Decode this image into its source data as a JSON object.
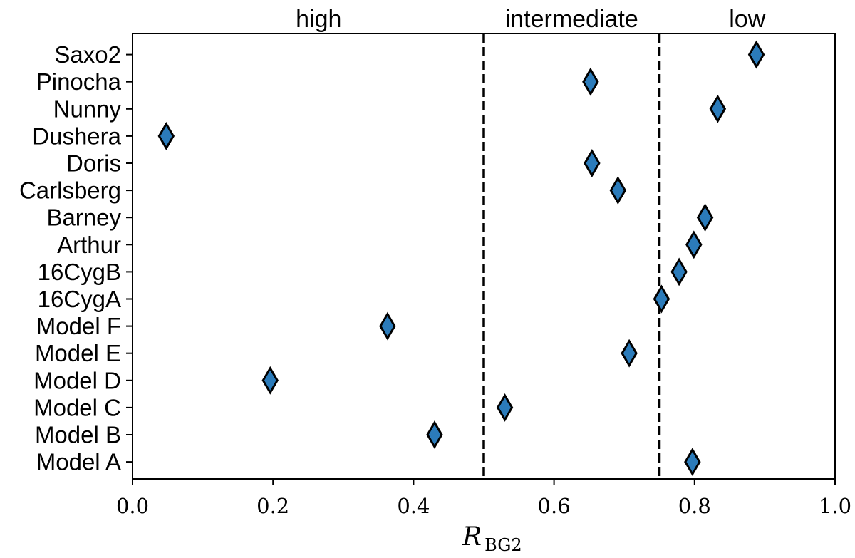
{
  "chart_data": {
    "type": "scatter",
    "marker": "diamond",
    "marker_color": "#2b7bba",
    "marker_edge_color": "#000000",
    "categories": [
      "Saxo2",
      "Pinocha",
      "Nunny",
      "Dushera",
      "Doris",
      "Carlsberg",
      "Barney",
      "Arthur",
      "16CygB",
      "16CygA",
      "Model F",
      "Model E",
      "Model D",
      "Model C",
      "Model B",
      "Model A"
    ],
    "values": [
      0.888,
      0.652,
      0.833,
      0.048,
      0.654,
      0.691,
      0.815,
      0.799,
      0.778,
      0.753,
      0.363,
      0.707,
      0.196,
      0.53,
      0.43,
      0.797
    ],
    "xlabel_symbol": "R",
    "xlabel_subscript": "BG2",
    "xlim": [
      0.0,
      1.0
    ],
    "xticks": [
      "0.0",
      "0.2",
      "0.4",
      "0.6",
      "0.8",
      "1.0"
    ],
    "xtick_values": [
      0.0,
      0.2,
      0.4,
      0.6,
      0.8,
      1.0
    ],
    "thresholds": [
      0.5,
      0.75
    ],
    "threshold_style": "dashed",
    "regions": [
      {
        "label": "high",
        "center": 0.265
      },
      {
        "label": "intermediate",
        "center": 0.625
      },
      {
        "label": "low",
        "center": 0.875
      }
    ],
    "grid": false,
    "legend": "none"
  }
}
